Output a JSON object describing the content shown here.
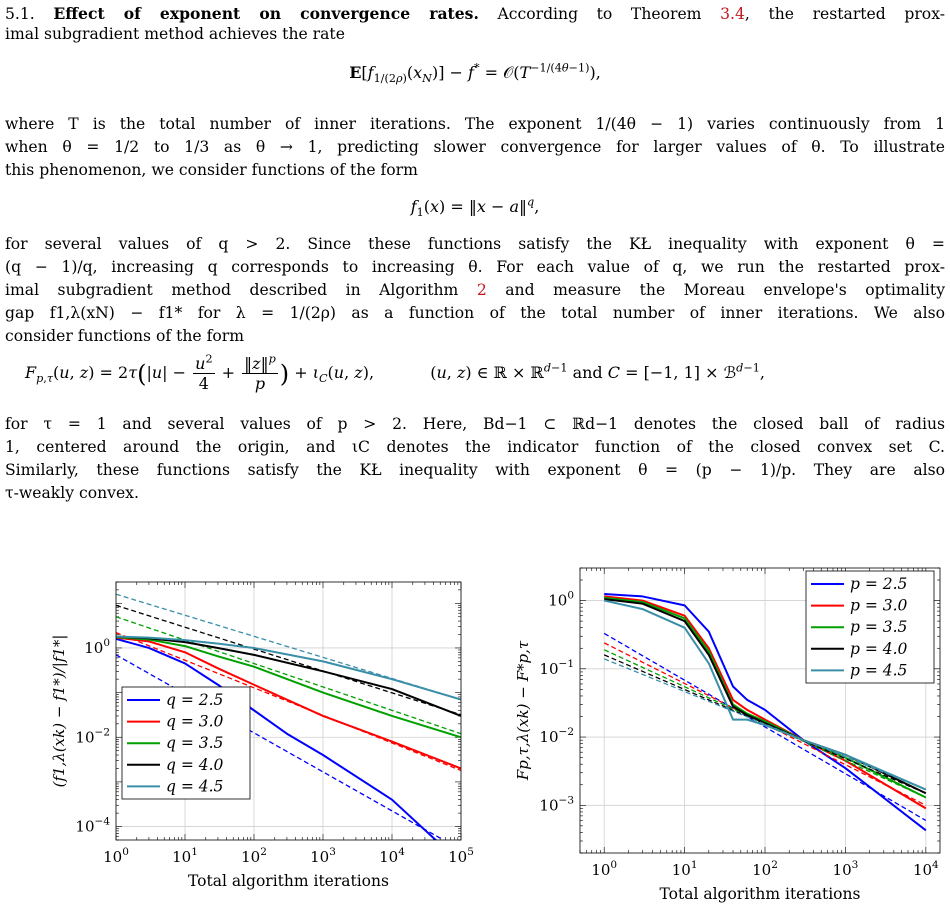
{
  "paper": {
    "section_num": "5.1.",
    "section_title": "Effect of exponent on convergence rates.",
    "p1_a": "According to Theorem",
    "ref_theorem": "3.4",
    "p1_b": ", the restarted prox-",
    "p1_c": "imal subgradient method achieves the rate",
    "eq1": "E[f1/(2ρ)(xN)] − f* = O(T−1/(4θ−1)),",
    "p2": [
      "where T is the total number of inner iterations. The exponent 1/(4θ − 1) varies continuously from 1",
      "when θ = 1/2 to 1/3 as θ → 1, predicting slower convergence for larger values of θ. To illustrate",
      "this phenomenon, we consider functions of the form"
    ],
    "eq2": "f1(x) = ‖x − a‖q,",
    "p3_l1": "for several values of q > 2. Since these functions satisfy the KŁ inequality with exponent θ =",
    "p3_l2": "(q − 1)/q, increasing q corresponds to increasing θ. For each value of q, we run the restarted prox-",
    "p3_l3a": "imal subgradient method described in Algorithm",
    "ref_algorithm": "2",
    "p3_l3b": "and measure the Moreau envelope's optimality",
    "p3_l4": "gap f1,λ(xN) − f1* for λ = 1/(2ρ) as a function of the total number of inner iterations. We also",
    "p3_l5": "consider functions of the form",
    "eq3": "Fp,τ(u, z) = 2τ(|u| − u²/4 + ‖z‖p/p) + ιC(u, z),   (u, z) ∈ ℝ × ℝd−1 and C = [−1, 1] × Bd−1,",
    "p4": [
      "for τ = 1 and several values of p > 2. Here, Bd−1 ⊂ ℝd−1 denotes the closed ball of radius",
      "1, centered around the origin, and ιC denotes the indicator function of the closed convex set C.",
      "Similarly, these functions satisfy the KŁ inequality with exponent θ = (p − 1)/p. They are also",
      "τ-weakly convex."
    ]
  },
  "chart_data": [
    {
      "type": "line",
      "xscale": "log",
      "yscale": "log",
      "xlim": [
        1,
        100000
      ],
      "ylim": [
        5e-05,
        30
      ],
      "xlabel": "Total algorithm iterations",
      "ylabel": "(f1,λ(xk) − f1*)/|f1*|",
      "x_ticks": [
        "10^0",
        "10^1",
        "10^2",
        "10^3",
        "10^4",
        "10^5"
      ],
      "y_ticks": [
        "10^0",
        "10^-2",
        "10^-4"
      ],
      "grid": true,
      "legend_position": "bottom-left",
      "series": [
        {
          "name": "q = 2.5",
          "color": "#0000ff",
          "x": [
            1,
            3,
            10,
            30,
            100,
            300,
            1000,
            10000,
            100000
          ],
          "y": [
            1.6,
            1.0,
            0.45,
            0.15,
            0.04,
            0.012,
            0.004,
            0.0004,
            1.5e-05
          ],
          "fit": {
            "x": [
              1,
              100000
            ],
            "y": [
              0.7,
              3e-05
            ]
          }
        },
        {
          "name": "q = 3.0",
          "color": "#ff0000",
          "x": [
            1,
            3,
            10,
            30,
            100,
            1000,
            10000,
            100000
          ],
          "y": [
            1.7,
            1.4,
            0.8,
            0.35,
            0.15,
            0.03,
            0.008,
            0.002
          ],
          "fit": {
            "x": [
              1,
              100000
            ],
            "y": [
              2.2,
              0.0018
            ]
          }
        },
        {
          "name": "q = 3.5",
          "color": "#00a000",
          "x": [
            1,
            3,
            10,
            30,
            100,
            1000,
            10000,
            100000
          ],
          "y": [
            1.75,
            1.55,
            1.1,
            0.65,
            0.38,
            0.1,
            0.03,
            0.01
          ],
          "fit": {
            "x": [
              1,
              100000
            ],
            "y": [
              5,
              0.012
            ]
          }
        },
        {
          "name": "q = 4.0",
          "color": "#000000",
          "x": [
            1,
            3,
            10,
            30,
            100,
            1000,
            10000,
            100000
          ],
          "y": [
            1.8,
            1.65,
            1.35,
            1.0,
            0.7,
            0.3,
            0.12,
            0.03
          ],
          "fit": {
            "x": [
              1,
              100000
            ],
            "y": [
              9,
              0.032
            ]
          }
        },
        {
          "name": "q = 4.5",
          "color": "#3a8fa8",
          "x": [
            1,
            3,
            10,
            30,
            100,
            1000,
            10000,
            100000
          ],
          "y": [
            1.8,
            1.7,
            1.5,
            1.25,
            1.0,
            0.5,
            0.2,
            0.07
          ],
          "fit": {
            "x": [
              1,
              100000
            ],
            "y": [
              16,
              0.07
            ]
          }
        }
      ]
    },
    {
      "type": "line",
      "xscale": "log",
      "yscale": "log",
      "xlim": [
        0.5,
        15000
      ],
      "ylim": [
        0.0002,
        3
      ],
      "xlabel": "Total algorithm iterations",
      "ylabel": "Fp,τ,λ(xk) − F*p,τ",
      "x_ticks": [
        "10^0",
        "10^1",
        "10^2",
        "10^3",
        "10^4"
      ],
      "y_ticks": [
        "10^0",
        "10^-1",
        "10^-2",
        "10^-3"
      ],
      "grid": true,
      "legend_position": "top-right",
      "series": [
        {
          "name": "p = 2.5",
          "color": "#0000ff",
          "x": [
            1,
            3,
            10,
            20,
            40,
            60,
            100,
            300,
            1000,
            10000
          ],
          "y": [
            1.25,
            1.15,
            0.85,
            0.35,
            0.055,
            0.035,
            0.025,
            0.009,
            0.0035,
            0.00043
          ],
          "fit": {
            "x": [
              1,
              10000
            ],
            "y": [
              0.33,
              0.0006
            ]
          }
        },
        {
          "name": "p = 3.0",
          "color": "#ff0000",
          "x": [
            1,
            3,
            10,
            20,
            40,
            60,
            100,
            300,
            1000,
            10000
          ],
          "y": [
            1.15,
            1.0,
            0.6,
            0.2,
            0.035,
            0.025,
            0.018,
            0.009,
            0.0045,
            0.0009
          ],
          "fit": {
            "x": [
              1,
              10000
            ],
            "y": [
              0.24,
              0.001
            ]
          }
        },
        {
          "name": "p = 3.5",
          "color": "#00a000",
          "x": [
            1,
            3,
            10,
            20,
            40,
            60,
            100,
            300,
            1000,
            10000
          ],
          "y": [
            1.1,
            0.95,
            0.55,
            0.18,
            0.03,
            0.022,
            0.017,
            0.009,
            0.005,
            0.0013
          ],
          "fit": {
            "x": [
              1,
              10000
            ],
            "y": [
              0.19,
              0.0013
            ]
          }
        },
        {
          "name": "p = 4.0",
          "color": "#000000",
          "x": [
            1,
            3,
            10,
            20,
            40,
            60,
            100,
            300,
            1000,
            10000
          ],
          "y": [
            1.05,
            0.9,
            0.5,
            0.16,
            0.028,
            0.021,
            0.016,
            0.009,
            0.0055,
            0.0015
          ],
          "fit": {
            "x": [
              1,
              10000
            ],
            "y": [
              0.16,
              0.0015
            ]
          }
        },
        {
          "name": "p = 4.5",
          "color": "#3a8fa8",
          "x": [
            1,
            3,
            10,
            20,
            40,
            60,
            100,
            300,
            1000,
            10000
          ],
          "y": [
            1.0,
            0.75,
            0.4,
            0.12,
            0.018,
            0.018,
            0.015,
            0.009,
            0.0055,
            0.0017
          ],
          "fit": {
            "x": [
              1,
              10000
            ],
            "y": [
              0.14,
              0.0017
            ]
          }
        }
      ]
    }
  ]
}
